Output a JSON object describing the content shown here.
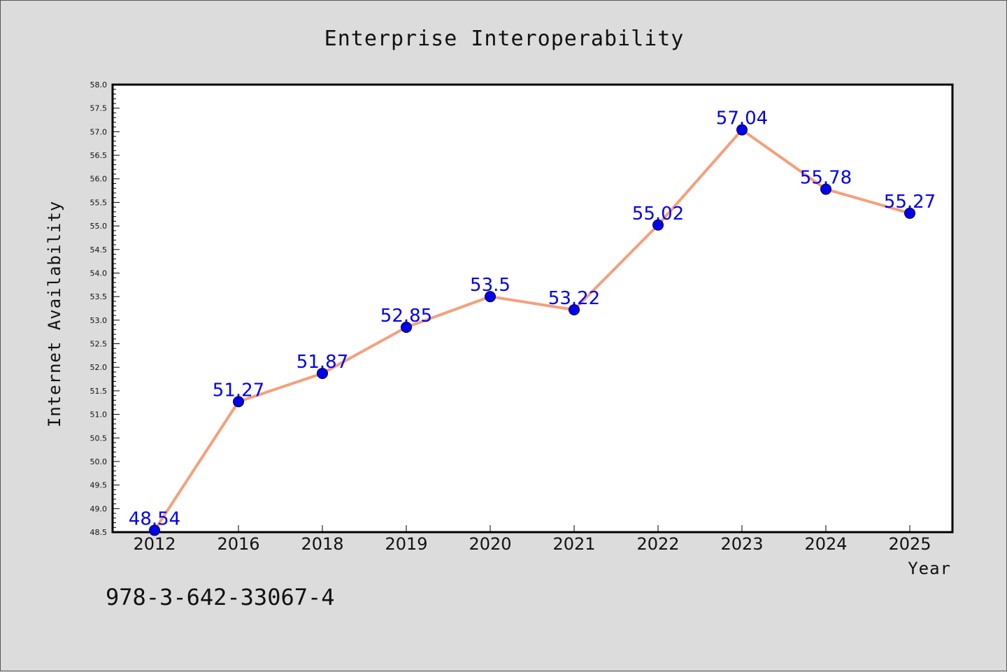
{
  "chart_data": {
    "type": "line",
    "title": "Enterprise Interoperability",
    "xlabel": "Year",
    "ylabel": "Internet Availability",
    "categories": [
      "2012",
      "2016",
      "2018",
      "2019",
      "2020",
      "2021",
      "2022",
      "2023",
      "2024",
      "2025"
    ],
    "values": [
      48.54,
      51.27,
      51.87,
      52.85,
      53.5,
      53.22,
      55.02,
      57.04,
      55.78,
      55.27
    ],
    "data_labels": [
      "48.54",
      "51.27",
      "51.87",
      "52.85",
      "53.5",
      "53.22",
      "55.02",
      "57.04",
      "55.78",
      "55.27"
    ],
    "ylim": [
      48.5,
      58.0
    ],
    "yticks": [
      "48.5",
      "49.0",
      "49.5",
      "50.0",
      "50.5",
      "51.0",
      "51.5",
      "52.0",
      "52.5",
      "53.0",
      "53.5",
      "54.0",
      "54.5",
      "55.0",
      "55.5",
      "56.0",
      "56.5",
      "57.0",
      "57.5",
      "58.0"
    ],
    "grid": false,
    "line_color": "#f4a07c",
    "marker_color": "#0000ee",
    "label_color": "#0000ee"
  },
  "footer": {
    "isbn": "978-3-642-33067-4"
  }
}
